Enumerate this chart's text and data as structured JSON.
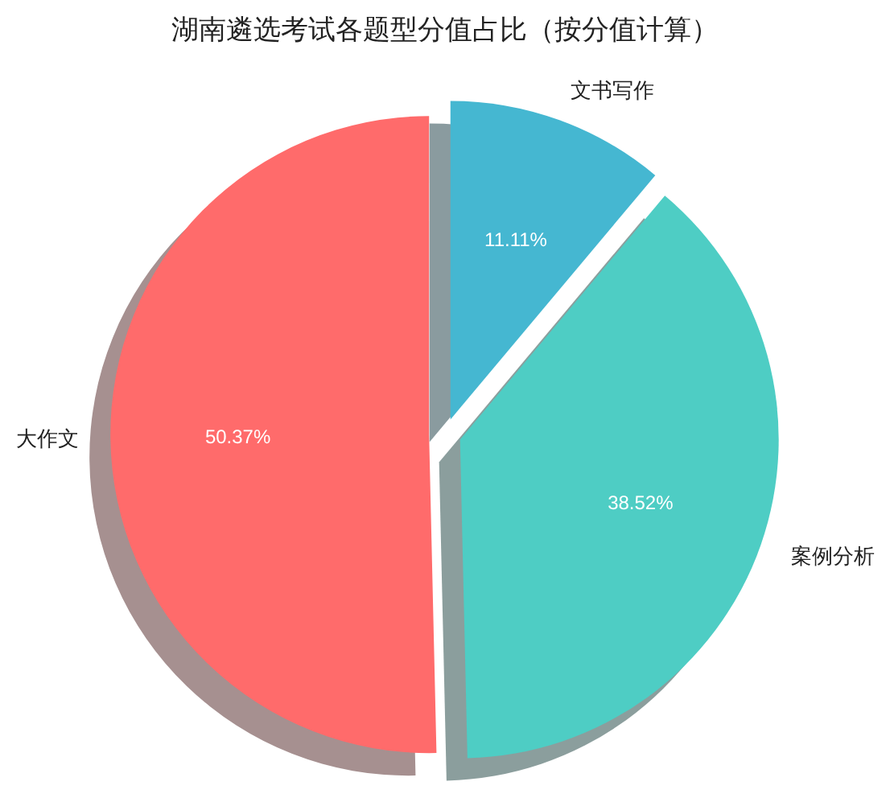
{
  "chart_data": {
    "type": "pie",
    "title": "湖南遴选考试各题型分值占比（按分值计算）",
    "categories": [
      "大作文",
      "案例分析",
      "文书写作"
    ],
    "values": [
      50.37,
      38.52,
      11.11
    ],
    "value_labels": [
      "50.37%",
      "38.52%",
      "11.11%"
    ],
    "colors": [
      "#ff6b6b",
      "#4ecdc4",
      "#45b7d1"
    ]
  }
}
